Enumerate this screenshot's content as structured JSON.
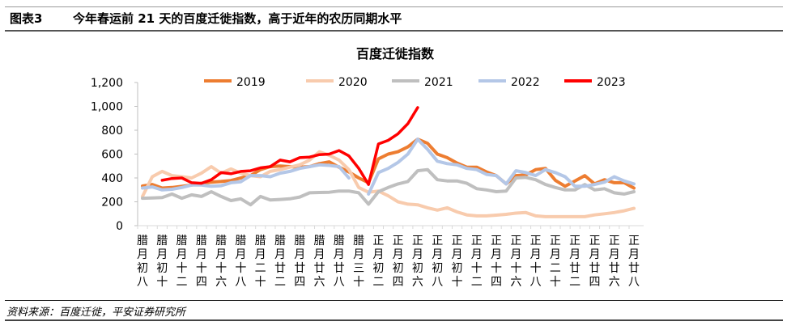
{
  "header": {
    "figure_label": "图表3",
    "title": "今年春运前 21 天的百度迁徙指数，高于近年的农历同期水平"
  },
  "source": "资料来源：百度迁徙，平安证券研究所",
  "chart_data": {
    "type": "line",
    "title": "百度迁徙指数",
    "xlabel": "",
    "ylabel": "",
    "ylim": [
      0,
      1200
    ],
    "yticks": [
      "0",
      "200",
      "400",
      "600",
      "800",
      "1,000",
      "1,200"
    ],
    "grid": false,
    "legend": "top",
    "x_tick_labels": [
      "腊月初八",
      "腊月初十",
      "腊月十二",
      "腊月十四",
      "腊月十六",
      "腊月十八",
      "腊月二十",
      "腊月廿二",
      "腊月廿四",
      "腊月廿六",
      "腊月廿八",
      "腊月三十",
      "正月初二",
      "正月初四",
      "正月初六",
      "正月初八",
      "正月初十",
      "正月十二",
      "正月十四",
      "正月十六",
      "正月十八",
      "正月二十",
      "正月廿二",
      "正月廿四",
      "正月廿六",
      "正月廿八"
    ],
    "x_days": [
      "腊月初八",
      "腊月初九",
      "腊月初十",
      "腊月十一",
      "腊月十二",
      "腊月十三",
      "腊月十四",
      "腊月十五",
      "腊月十六",
      "腊月十七",
      "腊月十八",
      "腊月十九",
      "腊月二十",
      "腊月廿一",
      "腊月廿二",
      "腊月廿三",
      "腊月廿四",
      "腊月廿五",
      "腊月廿六",
      "腊月廿七",
      "腊月廿八",
      "腊月廿九",
      "腊月三十",
      "正月初一",
      "正月初二",
      "正月初三",
      "正月初四",
      "正月初五",
      "正月初六",
      "正月初七",
      "正月初八",
      "正月初九",
      "正月初十",
      "正月十一",
      "正月十二",
      "正月十三",
      "正月十四",
      "正月十五",
      "正月十六",
      "正月十七",
      "正月十八",
      "正月十九",
      "正月二十",
      "正月廿一",
      "正月廿二",
      "正月廿三",
      "正月廿四",
      "正月廿五",
      "正月廿六",
      "正月廿七",
      "正月廿八"
    ],
    "series": [
      {
        "name": "2019",
        "color": "#ED7D31",
        "values": [
          332,
          345,
          315,
          320,
          330,
          340,
          355,
          365,
          370,
          378,
          400,
          420,
          470,
          495,
          500,
          495,
          490,
          495,
          520,
          535,
          490,
          450,
          400,
          360,
          560,
          600,
          620,
          660,
          725,
          690,
          600,
          570,
          525,
          490,
          490,
          450,
          420,
          350,
          420,
          425,
          470,
          480,
          380,
          330,
          375,
          420,
          350,
          385,
          360,
          360,
          315
        ]
      },
      {
        "name": "2020",
        "color": "#F8CBAD",
        "values": [
          245,
          410,
          455,
          420,
          410,
          400,
          440,
          495,
          440,
          475,
          440,
          420,
          410,
          455,
          470,
          490,
          510,
          550,
          620,
          590,
          550,
          470,
          320,
          280,
          290,
          250,
          200,
          180,
          175,
          150,
          130,
          150,
          115,
          90,
          82,
          82,
          88,
          95,
          105,
          110,
          82,
          75,
          75,
          75,
          75,
          75,
          90,
          100,
          110,
          125,
          145
        ]
      },
      {
        "name": "2021",
        "color": "#BFBFBF",
        "values": [
          230,
          232,
          235,
          265,
          230,
          258,
          245,
          285,
          245,
          210,
          225,
          175,
          245,
          215,
          220,
          225,
          240,
          275,
          278,
          280,
          290,
          290,
          275,
          180,
          285,
          320,
          350,
          370,
          460,
          470,
          385,
          375,
          375,
          355,
          310,
          300,
          285,
          290,
          400,
          405,
          385,
          345,
          320,
          300,
          300,
          345,
          300,
          310,
          275,
          265,
          285
        ]
      },
      {
        "name": "2022",
        "color": "#B4C7E7",
        "values": [
          315,
          325,
          300,
          305,
          320,
          340,
          340,
          330,
          335,
          360,
          368,
          420,
          420,
          410,
          440,
          455,
          480,
          495,
          510,
          505,
          495,
          400,
          null,
          265,
          445,
          480,
          530,
          600,
          725,
          640,
          540,
          520,
          510,
          480,
          470,
          430,
          420,
          350,
          460,
          445,
          420,
          470,
          445,
          410,
          330,
          330,
          345,
          365,
          410,
          375,
          350
        ]
      },
      {
        "name": "2023",
        "color": "#FF0000",
        "values": [
          null,
          null,
          380,
          395,
          400,
          360,
          355,
          385,
          445,
          435,
          455,
          460,
          485,
          495,
          550,
          535,
          570,
          575,
          595,
          600,
          630,
          585,
          480,
          345,
          685,
          715,
          770,
          855,
          990
        ]
      }
    ]
  }
}
